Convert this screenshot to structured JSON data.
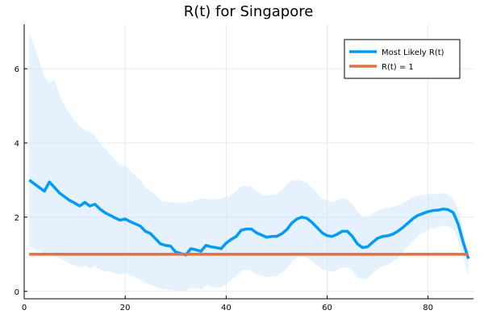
{
  "chart_data": {
    "type": "line",
    "title": "R(t) for Singapore",
    "xlabel": "",
    "ylabel": "",
    "xlim": [
      0,
      89
    ],
    "ylim": [
      -0.2,
      7.2
    ],
    "xticks": [
      0,
      20,
      40,
      60,
      80
    ],
    "yticks": [
      0,
      2,
      4,
      6
    ],
    "grid": true,
    "legend_position": "top-right",
    "colors": {
      "most_likely": "#009af9",
      "baseline": "#e26f46",
      "band": "#cfe8fd"
    },
    "x": [
      1,
      2,
      3,
      4,
      5,
      6,
      7,
      8,
      9,
      10,
      11,
      12,
      13,
      14,
      15,
      16,
      17,
      18,
      19,
      20,
      21,
      22,
      23,
      24,
      25,
      26,
      27,
      28,
      29,
      30,
      31,
      32,
      33,
      34,
      35,
      36,
      37,
      38,
      39,
      40,
      41,
      42,
      43,
      44,
      45,
      46,
      47,
      48,
      49,
      50,
      51,
      52,
      53,
      54,
      55,
      56,
      57,
      58,
      59,
      60,
      61,
      62,
      63,
      64,
      65,
      66,
      67,
      68,
      69,
      70,
      71,
      72,
      73,
      74,
      75,
      76,
      77,
      78,
      79,
      80,
      81,
      82,
      83,
      84,
      85,
      86,
      87,
      88
    ],
    "series": [
      {
        "name": "Most Likely R(t)",
        "values": [
          3.0,
          2.9,
          2.8,
          2.7,
          2.95,
          2.8,
          2.65,
          2.55,
          2.45,
          2.38,
          2.3,
          2.4,
          2.3,
          2.35,
          2.22,
          2.12,
          2.05,
          1.98,
          1.92,
          1.95,
          1.88,
          1.82,
          1.76,
          1.62,
          1.56,
          1.42,
          1.28,
          1.24,
          1.22,
          1.06,
          1.02,
          0.98,
          1.15,
          1.12,
          1.08,
          1.24,
          1.2,
          1.18,
          1.15,
          1.3,
          1.4,
          1.48,
          1.65,
          1.68,
          1.68,
          1.58,
          1.52,
          1.46,
          1.48,
          1.48,
          1.55,
          1.66,
          1.84,
          1.95,
          2.0,
          1.97,
          1.86,
          1.72,
          1.58,
          1.5,
          1.48,
          1.54,
          1.62,
          1.62,
          1.48,
          1.28,
          1.18,
          1.2,
          1.32,
          1.43,
          1.48,
          1.5,
          1.54,
          1.62,
          1.72,
          1.84,
          1.96,
          2.05,
          2.1,
          2.15,
          2.18,
          2.19,
          2.22,
          2.2,
          2.12,
          1.8,
          1.3,
          0.88
        ]
      },
      {
        "name": "R(t) = 1",
        "values": [
          1,
          1,
          1,
          1,
          1,
          1,
          1,
          1,
          1,
          1,
          1,
          1,
          1,
          1,
          1,
          1,
          1,
          1,
          1,
          1,
          1,
          1,
          1,
          1,
          1,
          1,
          1,
          1,
          1,
          1,
          1,
          1,
          1,
          1,
          1,
          1,
          1,
          1,
          1,
          1,
          1,
          1,
          1,
          1,
          1,
          1,
          1,
          1,
          1,
          1,
          1,
          1,
          1,
          1,
          1,
          1,
          1,
          1,
          1,
          1,
          1,
          1,
          1,
          1,
          1,
          1,
          1,
          1,
          1,
          1,
          1,
          1,
          1,
          1,
          1,
          1,
          1,
          1,
          1,
          1,
          1,
          1,
          1,
          1,
          1,
          1,
          1,
          1
        ]
      }
    ],
    "band_upper": [
      7.0,
      6.6,
      6.2,
      5.8,
      5.6,
      5.7,
      5.3,
      5.0,
      4.8,
      4.6,
      4.45,
      4.35,
      4.3,
      4.2,
      4.0,
      3.85,
      3.7,
      3.55,
      3.42,
      3.38,
      3.25,
      3.12,
      3.0,
      2.8,
      2.7,
      2.6,
      2.45,
      2.42,
      2.4,
      2.4,
      2.38,
      2.4,
      2.42,
      2.45,
      2.5,
      2.5,
      2.48,
      2.48,
      2.5,
      2.55,
      2.6,
      2.7,
      2.82,
      2.85,
      2.82,
      2.7,
      2.62,
      2.58,
      2.6,
      2.62,
      2.72,
      2.88,
      2.98,
      3.0,
      2.98,
      2.92,
      2.8,
      2.65,
      2.5,
      2.45,
      2.4,
      2.45,
      2.5,
      2.48,
      2.35,
      2.15,
      2.0,
      2.0,
      2.08,
      2.18,
      2.22,
      2.25,
      2.28,
      2.32,
      2.38,
      2.45,
      2.55,
      2.58,
      2.6,
      2.62,
      2.62,
      2.62,
      2.65,
      2.62,
      2.5,
      2.2,
      1.6,
      1.05
    ],
    "band_lower": [
      1.2,
      1.15,
      1.1,
      1.0,
      1.0,
      0.95,
      0.9,
      0.82,
      0.75,
      0.7,
      0.65,
      0.7,
      0.62,
      0.68,
      0.58,
      0.55,
      0.52,
      0.48,
      0.45,
      0.5,
      0.42,
      0.38,
      0.32,
      0.2,
      0.18,
      0.12,
      0.08,
      0.05,
      0.03,
      0.02,
      0.02,
      0.02,
      0.1,
      0.08,
      0.05,
      0.15,
      0.12,
      0.1,
      0.1,
      0.2,
      0.3,
      0.4,
      0.55,
      0.58,
      0.55,
      0.45,
      0.42,
      0.38,
      0.4,
      0.42,
      0.5,
      0.62,
      0.8,
      0.92,
      0.95,
      0.9,
      0.8,
      0.7,
      0.6,
      0.55,
      0.52,
      0.58,
      0.65,
      0.65,
      0.55,
      0.38,
      0.32,
      0.35,
      0.48,
      0.6,
      0.68,
      0.72,
      0.8,
      0.9,
      1.05,
      1.2,
      1.35,
      1.5,
      1.58,
      1.65,
      1.7,
      1.72,
      1.78,
      1.75,
      1.68,
      1.35,
      0.9,
      0.4
    ]
  }
}
